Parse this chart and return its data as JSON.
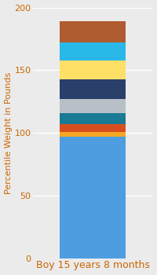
{
  "category": "Boy 15 years 8 months",
  "ylabel": "Percentile Weight in Pounds",
  "ylim": [
    0,
    200
  ],
  "yticks": [
    0,
    50,
    100,
    150,
    200
  ],
  "background_color": "#ebebeb",
  "segments": [
    {
      "value": 97,
      "color": "#4d9de0"
    },
    {
      "value": 4,
      "color": "#f5a623"
    },
    {
      "value": 6,
      "color": "#d94e1f"
    },
    {
      "value": 9,
      "color": "#1a7a94"
    },
    {
      "value": 11,
      "color": "#b8bfc7"
    },
    {
      "value": 16,
      "color": "#2b3f6b"
    },
    {
      "value": 15,
      "color": "#ffe066"
    },
    {
      "value": 14,
      "color": "#29b8e8"
    },
    {
      "value": 17,
      "color": "#b05a2f"
    }
  ],
  "xlabel_fontsize": 9,
  "ylabel_fontsize": 8,
  "tick_fontsize": 8,
  "bar_width": 0.55,
  "xlabel_color": "#cc6600",
  "ylabel_color": "#cc6600",
  "tick_color": "#cc6600",
  "grid_color": "#ffffff"
}
